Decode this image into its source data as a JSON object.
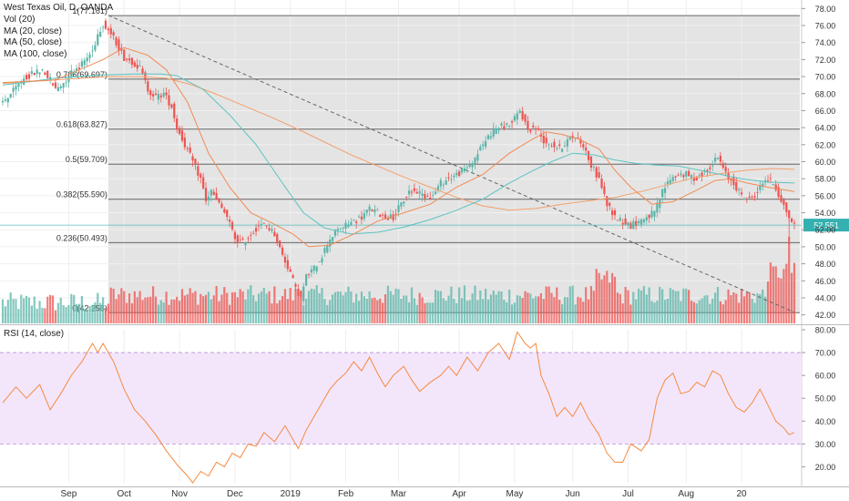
{
  "legend": {
    "symbol": "West Texas Oil, D, OANDA",
    "vol": "Vol (20)",
    "ma20": "MA (20, close)",
    "ma50": "MA (50, close)",
    "ma100": "MA (100, close)"
  },
  "rsi_title": "RSI (14, close)",
  "colors": {
    "up": "#5bb5a9",
    "down": "#ee5350",
    "ma20": "#f18a55",
    "ma50": "#5cc4c0",
    "ma100": "#f4a06c",
    "rsi_line": "#f58a3f",
    "rsi_band": "#f3e6fb",
    "fib_zone": "#e4e4e4",
    "price_tag": "#35b0b0"
  },
  "chart_data": {
    "type": "candlestick",
    "price_axis": {
      "ylim": [
        41,
        79
      ],
      "ticks": [
        "42.00",
        "44.00",
        "46.00",
        "48.00",
        "50.00",
        "52.00",
        "54.00",
        "56.00",
        "58.00",
        "60.00",
        "62.00",
        "64.00",
        "66.00",
        "68.00",
        "70.00",
        "72.00",
        "74.00",
        "76.00",
        "78.00"
      ]
    },
    "last_price": "52.551",
    "time_axis": {
      "labels": [
        "Sep",
        "Oct",
        "Nov",
        "Dec",
        "2019",
        "Feb",
        "Mar",
        "Apr",
        "May",
        "Jun",
        "Jul",
        "Aug",
        "20"
      ]
    },
    "fib_levels": [
      {
        "label": "1(77.161)",
        "value": 77.161
      },
      {
        "label": "0.786(69.697)",
        "value": 69.697
      },
      {
        "label": "0.618(63.827)",
        "value": 63.827
      },
      {
        "label": "0.5(59.709)",
        "value": 59.709
      },
      {
        "label": "0.382(55.590)",
        "value": 55.59
      },
      {
        "label": "0.236(50.493)",
        "value": 50.493
      },
      {
        "label": "0(42.256)",
        "value": 42.256
      }
    ],
    "trendline": {
      "from": {
        "date": "Oct 3",
        "value": 77.2
      },
      "to": {
        "date": "Aug 9",
        "value": 42.3
      }
    },
    "price_path": [
      [
        0,
        67.0
      ],
      [
        4,
        68.3
      ],
      [
        8,
        69.8
      ],
      [
        12,
        70.4
      ],
      [
        15,
        70.8
      ],
      [
        18,
        69.6
      ],
      [
        20,
        68.5
      ],
      [
        23,
        69.3
      ],
      [
        26,
        70.5
      ],
      [
        30,
        71.5
      ],
      [
        34,
        73.0
      ],
      [
        36,
        75.0
      ],
      [
        38,
        76.2
      ],
      [
        40,
        75.5
      ],
      [
        43,
        74.0
      ],
      [
        46,
        72.2
      ],
      [
        49,
        71.8
      ],
      [
        52,
        71.0
      ],
      [
        55,
        68.5
      ],
      [
        58,
        67.6
      ],
      [
        61,
        68.0
      ],
      [
        64,
        66.5
      ],
      [
        66,
        64.0
      ],
      [
        69,
        62.0
      ],
      [
        72,
        60.0
      ],
      [
        75,
        58.0
      ],
      [
        77,
        55.5
      ],
      [
        79,
        56.5
      ],
      [
        82,
        55.0
      ],
      [
        85,
        53.5
      ],
      [
        88,
        51.0
      ],
      [
        91,
        50.5
      ],
      [
        94,
        51.5
      ],
      [
        97,
        52.5
      ],
      [
        100,
        52.5
      ],
      [
        103,
        51.5
      ],
      [
        106,
        49.0
      ],
      [
        109,
        47.0
      ],
      [
        111,
        45.0
      ],
      [
        113,
        44.0
      ],
      [
        115,
        46.5
      ],
      [
        118,
        47.5
      ],
      [
        121,
        49.0
      ],
      [
        124,
        51.0
      ],
      [
        127,
        52.0
      ],
      [
        130,
        52.5
      ],
      [
        133,
        53.0
      ],
      [
        136,
        53.5
      ],
      [
        139,
        54.5
      ],
      [
        142,
        54.0
      ],
      [
        145,
        53.5
      ],
      [
        148,
        53.5
      ],
      [
        151,
        55.0
      ],
      [
        154,
        56.5
      ],
      [
        157,
        56.5
      ],
      [
        160,
        56.0
      ],
      [
        163,
        56.0
      ],
      [
        166,
        57.5
      ],
      [
        169,
        58.0
      ],
      [
        172,
        58.5
      ],
      [
        175,
        59.0
      ],
      [
        178,
        60.0
      ],
      [
        181,
        61.5
      ],
      [
        184,
        63.0
      ],
      [
        187,
        64.0
      ],
      [
        190,
        64.2
      ],
      [
        193,
        64.5
      ],
      [
        196,
        66.0
      ],
      [
        199,
        63.8
      ],
      [
        202,
        64.0
      ],
      [
        205,
        62.5
      ],
      [
        208,
        62.0
      ],
      [
        211,
        61.5
      ],
      [
        214,
        62.5
      ],
      [
        217,
        63.0
      ],
      [
        220,
        62.0
      ],
      [
        223,
        59.5
      ],
      [
        226,
        58.0
      ],
      [
        229,
        55.0
      ],
      [
        232,
        53.5
      ],
      [
        235,
        53.0
      ],
      [
        238,
        52.5
      ],
      [
        241,
        53.0
      ],
      [
        244,
        53.5
      ],
      [
        247,
        54.0
      ],
      [
        250,
        56.5
      ],
      [
        253,
        58.0
      ],
      [
        256,
        58.5
      ],
      [
        259,
        58.5
      ],
      [
        262,
        58.0
      ],
      [
        265,
        58.5
      ],
      [
        268,
        59.5
      ],
      [
        271,
        60.5
      ],
      [
        274,
        58.5
      ],
      [
        277,
        57.5
      ],
      [
        280,
        56.0
      ],
      [
        283,
        55.5
      ],
      [
        286,
        56.5
      ],
      [
        289,
        58.0
      ],
      [
        292,
        57.5
      ],
      [
        295,
        55.5
      ],
      [
        298,
        53.5
      ],
      [
        300,
        52.5
      ]
    ],
    "ma20_path": [
      [
        0,
        69.3
      ],
      [
        20,
        69.6
      ],
      [
        38,
        72.0
      ],
      [
        46,
        73.4
      ],
      [
        55,
        72.5
      ],
      [
        62,
        70.8
      ],
      [
        70,
        67.0
      ],
      [
        78,
        61.0
      ],
      [
        86,
        57.0
      ],
      [
        94,
        54.0
      ],
      [
        102,
        52.8
      ],
      [
        110,
        51.5
      ],
      [
        116,
        50.0
      ],
      [
        124,
        50.2
      ],
      [
        133,
        51.5
      ],
      [
        142,
        53.0
      ],
      [
        152,
        54.0
      ],
      [
        162,
        55.0
      ],
      [
        172,
        57.0
      ],
      [
        182,
        58.5
      ],
      [
        192,
        61.0
      ],
      [
        200,
        62.5
      ],
      [
        206,
        63.5
      ],
      [
        212,
        63.2
      ],
      [
        218,
        62.7
      ],
      [
        226,
        61.5
      ],
      [
        232,
        59.0
      ],
      [
        238,
        57.0
      ],
      [
        246,
        55.0
      ],
      [
        254,
        55.3
      ],
      [
        262,
        56.5
      ],
      [
        270,
        57.8
      ],
      [
        276,
        58.0
      ],
      [
        282,
        57.5
      ],
      [
        290,
        57.0
      ],
      [
        300,
        56.5
      ]
    ],
    "ma50_path": [
      [
        0,
        69.0
      ],
      [
        20,
        69.8
      ],
      [
        38,
        70.2
      ],
      [
        50,
        70.3
      ],
      [
        60,
        70.3
      ],
      [
        66,
        70.1
      ],
      [
        76,
        68.5
      ],
      [
        86,
        65.5
      ],
      [
        96,
        62.0
      ],
      [
        106,
        57.5
      ],
      [
        114,
        54.0
      ],
      [
        122,
        52.2
      ],
      [
        132,
        51.5
      ],
      [
        142,
        51.7
      ],
      [
        152,
        52.3
      ],
      [
        162,
        53.2
      ],
      [
        172,
        54.3
      ],
      [
        182,
        55.6
      ],
      [
        192,
        57.5
      ],
      [
        200,
        58.8
      ],
      [
        208,
        60.0
      ],
      [
        216,
        61.0
      ],
      [
        224,
        60.8
      ],
      [
        232,
        60.2
      ],
      [
        240,
        59.8
      ],
      [
        248,
        59.6
      ],
      [
        256,
        59.5
      ],
      [
        264,
        59.0
      ],
      [
        272,
        58.5
      ],
      [
        280,
        58.0
      ],
      [
        290,
        57.6
      ],
      [
        300,
        57.5
      ]
    ],
    "ma100_path": [
      [
        0,
        69.2
      ],
      [
        20,
        69.6
      ],
      [
        40,
        70.0
      ],
      [
        52,
        70.0
      ],
      [
        62,
        69.8
      ],
      [
        72,
        69.0
      ],
      [
        82,
        67.8
      ],
      [
        92,
        66.5
      ],
      [
        102,
        65.2
      ],
      [
        112,
        63.8
      ],
      [
        122,
        62.3
      ],
      [
        132,
        60.8
      ],
      [
        142,
        59.5
      ],
      [
        152,
        58.2
      ],
      [
        162,
        57.0
      ],
      [
        172,
        55.8
      ],
      [
        182,
        54.8
      ],
      [
        192,
        54.3
      ],
      [
        202,
        54.5
      ],
      [
        212,
        55.0
      ],
      [
        222,
        55.4
      ],
      [
        232,
        55.8
      ],
      [
        242,
        56.5
      ],
      [
        252,
        57.3
      ],
      [
        262,
        58.1
      ],
      [
        272,
        58.6
      ],
      [
        282,
        59.0
      ],
      [
        292,
        59.2
      ],
      [
        300,
        59.1
      ]
    ],
    "rsi": {
      "ylim": [
        13,
        80
      ],
      "ticks": [
        "20.00",
        "30.00",
        "40.00",
        "50.00",
        "60.00",
        "70.00",
        "80.00"
      ],
      "band": [
        30,
        70
      ],
      "values": [
        [
          0,
          48
        ],
        [
          5,
          55
        ],
        [
          9,
          50
        ],
        [
          14,
          56
        ],
        [
          18,
          45
        ],
        [
          22,
          52
        ],
        [
          26,
          60
        ],
        [
          30,
          66
        ],
        [
          34,
          74
        ],
        [
          36,
          70
        ],
        [
          38,
          74
        ],
        [
          42,
          66
        ],
        [
          46,
          54
        ],
        [
          50,
          45
        ],
        [
          54,
          40
        ],
        [
          58,
          34
        ],
        [
          62,
          27
        ],
        [
          66,
          21
        ],
        [
          70,
          16
        ],
        [
          72,
          13
        ],
        [
          75,
          18
        ],
        [
          78,
          16
        ],
        [
          81,
          22
        ],
        [
          84,
          20
        ],
        [
          87,
          26
        ],
        [
          90,
          24
        ],
        [
          93,
          30
        ],
        [
          96,
          29
        ],
        [
          99,
          35
        ],
        [
          103,
          31
        ],
        [
          107,
          38
        ],
        [
          110,
          32
        ],
        [
          112,
          28
        ],
        [
          115,
          36
        ],
        [
          118,
          42
        ],
        [
          121,
          48
        ],
        [
          124,
          54
        ],
        [
          127,
          58
        ],
        [
          130,
          61
        ],
        [
          133,
          66
        ],
        [
          136,
          62
        ],
        [
          139,
          68
        ],
        [
          142,
          61
        ],
        [
          145,
          55
        ],
        [
          148,
          60
        ],
        [
          152,
          64
        ],
        [
          155,
          58
        ],
        [
          158,
          53
        ],
        [
          162,
          57
        ],
        [
          166,
          60
        ],
        [
          169,
          64
        ],
        [
          172,
          60
        ],
        [
          176,
          68
        ],
        [
          180,
          62
        ],
        [
          184,
          70
        ],
        [
          188,
          74
        ],
        [
          192,
          67
        ],
        [
          195,
          79
        ],
        [
          198,
          74
        ],
        [
          200,
          72
        ],
        [
          202,
          74
        ],
        [
          204,
          60
        ],
        [
          207,
          52
        ],
        [
          210,
          42
        ],
        [
          213,
          46
        ],
        [
          216,
          42
        ],
        [
          219,
          48
        ],
        [
          222,
          41
        ],
        [
          226,
          34
        ],
        [
          229,
          26
        ],
        [
          232,
          22
        ],
        [
          235,
          22
        ],
        [
          238,
          30
        ],
        [
          242,
          27
        ],
        [
          245,
          32
        ],
        [
          248,
          50
        ],
        [
          251,
          58
        ],
        [
          254,
          61
        ],
        [
          257,
          52
        ],
        [
          260,
          53
        ],
        [
          263,
          57
        ],
        [
          266,
          55
        ],
        [
          269,
          62
        ],
        [
          272,
          60
        ],
        [
          275,
          52
        ],
        [
          278,
          46
        ],
        [
          281,
          44
        ],
        [
          284,
          48
        ],
        [
          287,
          54
        ],
        [
          290,
          47
        ],
        [
          293,
          40
        ],
        [
          296,
          37
        ],
        [
          298,
          34
        ],
        [
          300,
          35
        ]
      ]
    },
    "volume": {
      "peak_index": 298,
      "note_levels": [
        45,
        48,
        50
      ]
    }
  }
}
